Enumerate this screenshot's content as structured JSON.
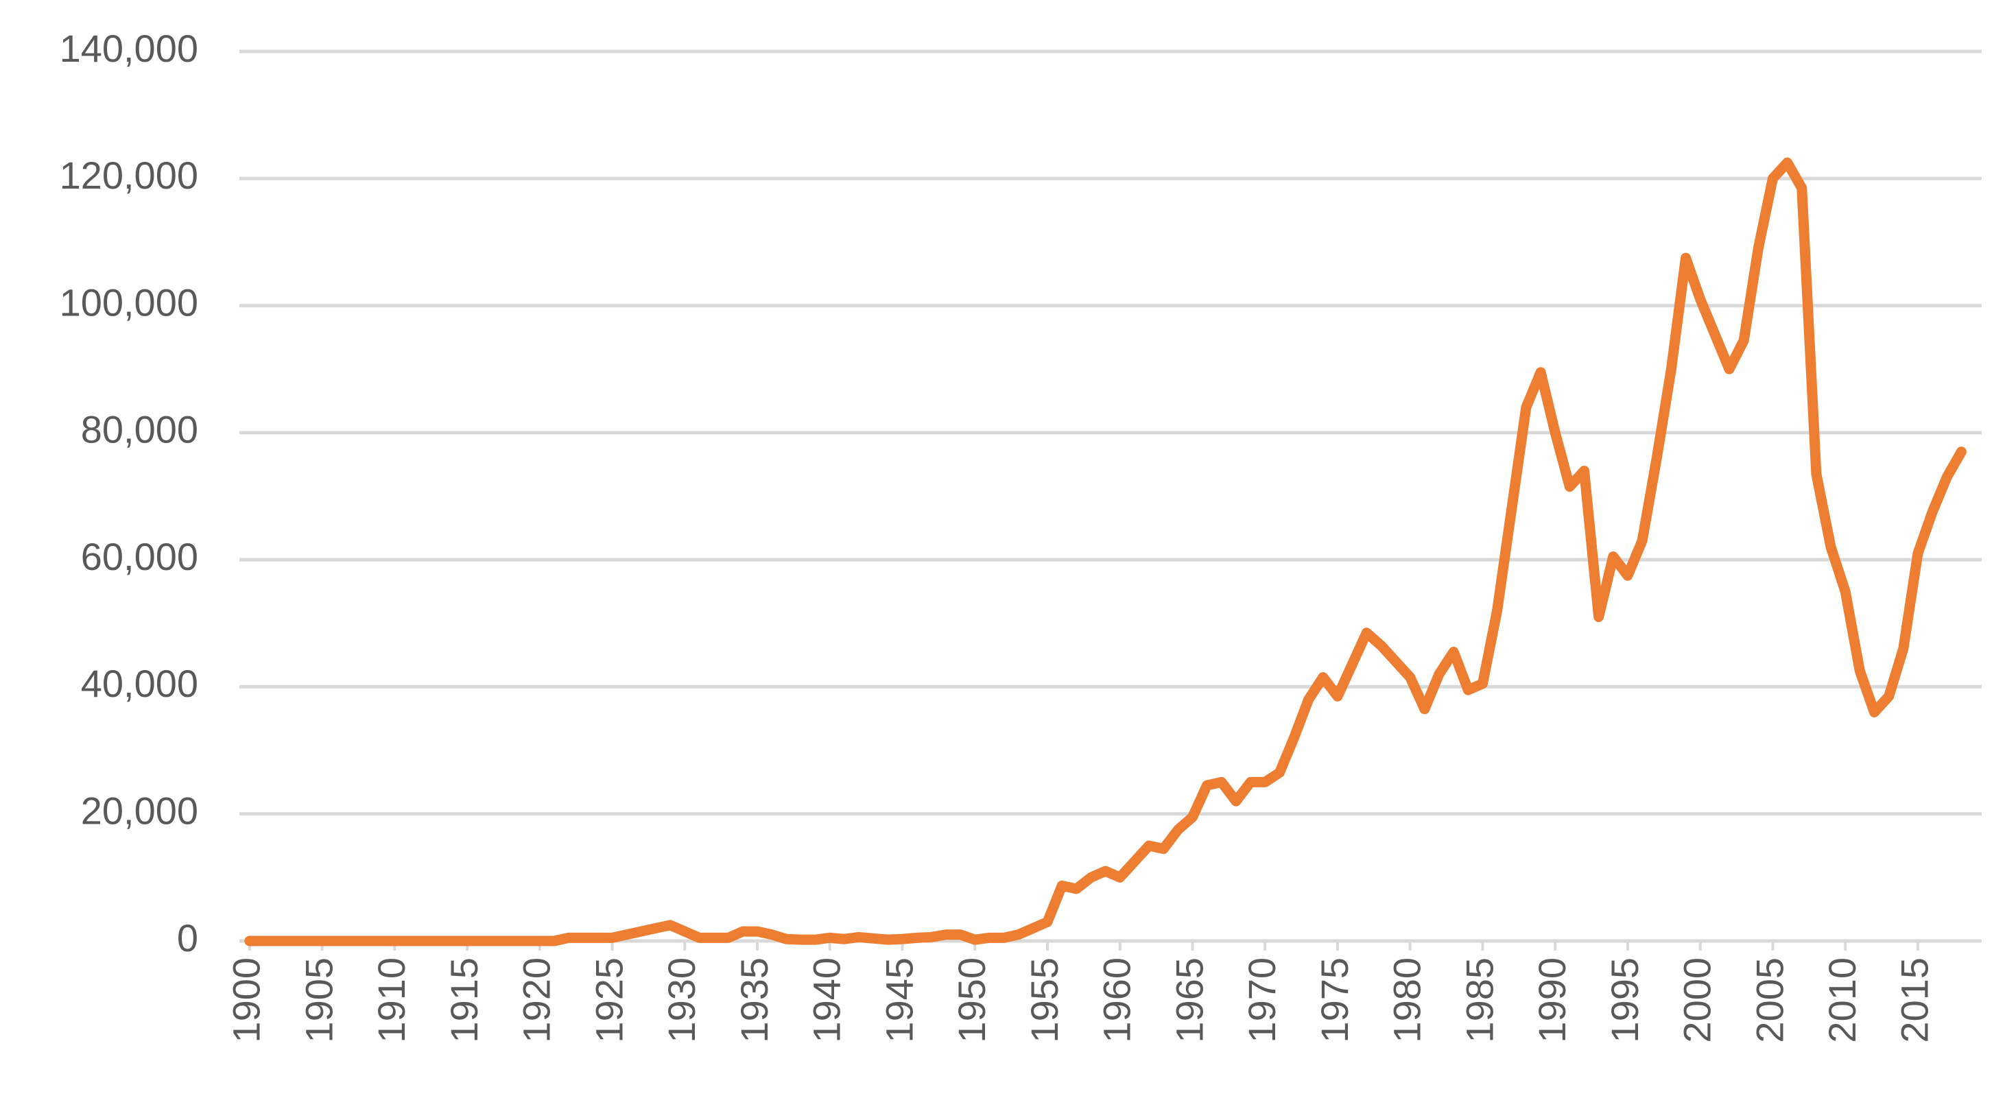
{
  "chart_data": {
    "type": "line",
    "x": [
      1900,
      1901,
      1902,
      1903,
      1904,
      1905,
      1906,
      1907,
      1908,
      1909,
      1910,
      1911,
      1912,
      1913,
      1914,
      1915,
      1916,
      1917,
      1918,
      1919,
      1920,
      1921,
      1922,
      1923,
      1924,
      1925,
      1926,
      1927,
      1928,
      1929,
      1930,
      1931,
      1932,
      1933,
      1934,
      1935,
      1936,
      1937,
      1938,
      1939,
      1940,
      1941,
      1942,
      1943,
      1944,
      1945,
      1946,
      1947,
      1948,
      1949,
      1950,
      1951,
      1952,
      1953,
      1954,
      1955,
      1956,
      1957,
      1958,
      1959,
      1960,
      1961,
      1962,
      1963,
      1964,
      1965,
      1966,
      1967,
      1968,
      1969,
      1970,
      1971,
      1972,
      1973,
      1974,
      1975,
      1976,
      1977,
      1978,
      1979,
      1980,
      1981,
      1982,
      1983,
      1984,
      1985,
      1986,
      1987,
      1988,
      1989,
      1990,
      1991,
      1992,
      1993,
      1994,
      1995,
      1996,
      1997,
      1998,
      1999,
      2000,
      2001,
      2002,
      2003,
      2004,
      2005,
      2006,
      2007,
      2008,
      2009,
      2010,
      2011,
      2012,
      2013,
      2014,
      2015,
      2016,
      2017,
      2018
    ],
    "series": [
      {
        "color": "#ed7d31",
        "values": [
          0,
          0,
          0,
          0,
          0,
          0,
          0,
          0,
          0,
          0,
          0,
          0,
          0,
          0,
          0,
          0,
          0,
          0,
          0,
          0,
          0,
          0,
          500,
          500,
          500,
          500,
          1000,
          1500,
          2000,
          2500,
          1500,
          500,
          500,
          500,
          1500,
          1500,
          1000,
          300,
          200,
          200,
          500,
          300,
          600,
          400,
          200,
          300,
          500,
          600,
          1000,
          1000,
          200,
          500,
          500,
          1000,
          2000,
          3000,
          8700,
          8200,
          10000,
          11000,
          10000,
          12500,
          15000,
          14500,
          17500,
          19500,
          24500,
          25000,
          22000,
          25000,
          25000,
          26500,
          32000,
          38000,
          41500,
          38500,
          43500,
          48500,
          46500,
          44000,
          41500,
          36500,
          42000,
          45500,
          39500,
          40500,
          52000,
          68000,
          84000,
          89500,
          80000,
          71500,
          74000,
          51000,
          60500,
          57500,
          63000,
          76000,
          90000,
          107500,
          101000,
          95500,
          90000,
          94500,
          109000,
          120000,
          122500,
          118500,
          73500,
          62000,
          55000,
          42500,
          36000,
          38500,
          46000,
          61000,
          67500,
          73000,
          77000
        ]
      }
    ],
    "xlim": [
      1899.3,
      2019.4
    ],
    "xticks": [
      1900,
      1905,
      1910,
      1915,
      1920,
      1925,
      1930,
      1935,
      1940,
      1945,
      1950,
      1955,
      1960,
      1965,
      1970,
      1975,
      1980,
      1985,
      1990,
      1995,
      2000,
      2005,
      2010,
      2015
    ],
    "ylim": [
      0,
      140000
    ],
    "yticks": [
      0,
      {
        "value": 20000,
        "label": "20,000"
      },
      {
        "value": 40000,
        "label": "40,000"
      },
      {
        "value": 60000,
        "label": "60,000"
      },
      {
        "value": 80000,
        "label": "80,000"
      },
      {
        "value": 100000,
        "label": "100,000"
      },
      {
        "value": 120000,
        "label": "120,000"
      },
      {
        "value": 140000,
        "label": "140,000"
      }
    ],
    "grid": true
  }
}
